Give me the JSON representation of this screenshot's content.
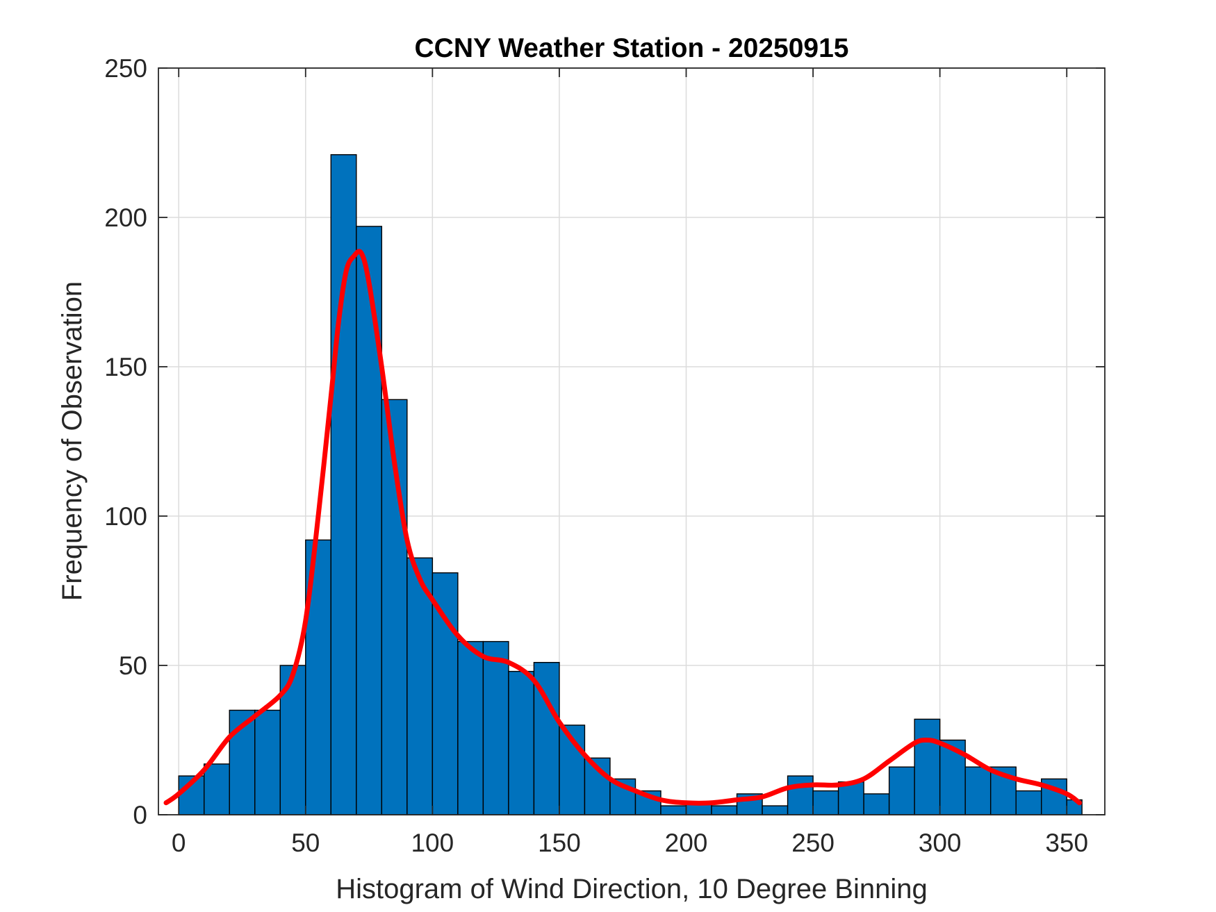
{
  "chart_data": {
    "type": "bar",
    "title": "CCNY Weather Station - 20250915",
    "xlabel": "Histogram of Wind Direction, 10 Degree Binning",
    "ylabel": "Frequency of Observation",
    "xlim": [
      -8,
      365
    ],
    "ylim": [
      0,
      250
    ],
    "xticks": [
      0,
      50,
      100,
      150,
      200,
      250,
      300,
      350
    ],
    "yticks": [
      0,
      50,
      100,
      150,
      200,
      250
    ],
    "grid": true,
    "bin_width": 10,
    "bars": {
      "color": "#0072BD",
      "bin_edges": [
        0,
        10,
        20,
        30,
        40,
        50,
        60,
        70,
        80,
        90,
        100,
        110,
        120,
        130,
        140,
        150,
        160,
        170,
        180,
        190,
        200,
        210,
        220,
        230,
        240,
        250,
        260,
        270,
        280,
        290,
        300,
        310,
        320,
        330,
        340,
        350,
        356
      ],
      "counts": [
        13,
        17,
        35,
        35,
        50,
        92,
        221,
        197,
        139,
        86,
        81,
        58,
        58,
        48,
        51,
        30,
        19,
        12,
        8,
        3,
        4,
        3,
        7,
        3,
        13,
        8,
        11,
        7,
        16,
        32,
        25,
        16,
        16,
        8,
        12,
        5
      ]
    },
    "fit_line": {
      "color": "#FF0000",
      "x": [
        -5,
        0,
        10,
        20,
        30,
        40,
        45,
        50,
        55,
        60,
        63,
        66,
        69,
        72,
        75,
        80,
        85,
        90,
        95,
        100,
        110,
        120,
        130,
        140,
        150,
        160,
        170,
        180,
        190,
        200,
        210,
        220,
        230,
        240,
        250,
        260,
        270,
        280,
        290,
        295,
        300,
        310,
        320,
        330,
        340,
        350,
        355
      ],
      "y": [
        4,
        7,
        15,
        26,
        33,
        40,
        47,
        65,
        100,
        140,
        165,
        182,
        187,
        188,
        178,
        150,
        118,
        92,
        79,
        72,
        60,
        53,
        51,
        45,
        31,
        20,
        12,
        8,
        5,
        4,
        4,
        5,
        6,
        9,
        10,
        10,
        12,
        18,
        24,
        25,
        24,
        20,
        15,
        12,
        10,
        7,
        4
      ]
    }
  }
}
